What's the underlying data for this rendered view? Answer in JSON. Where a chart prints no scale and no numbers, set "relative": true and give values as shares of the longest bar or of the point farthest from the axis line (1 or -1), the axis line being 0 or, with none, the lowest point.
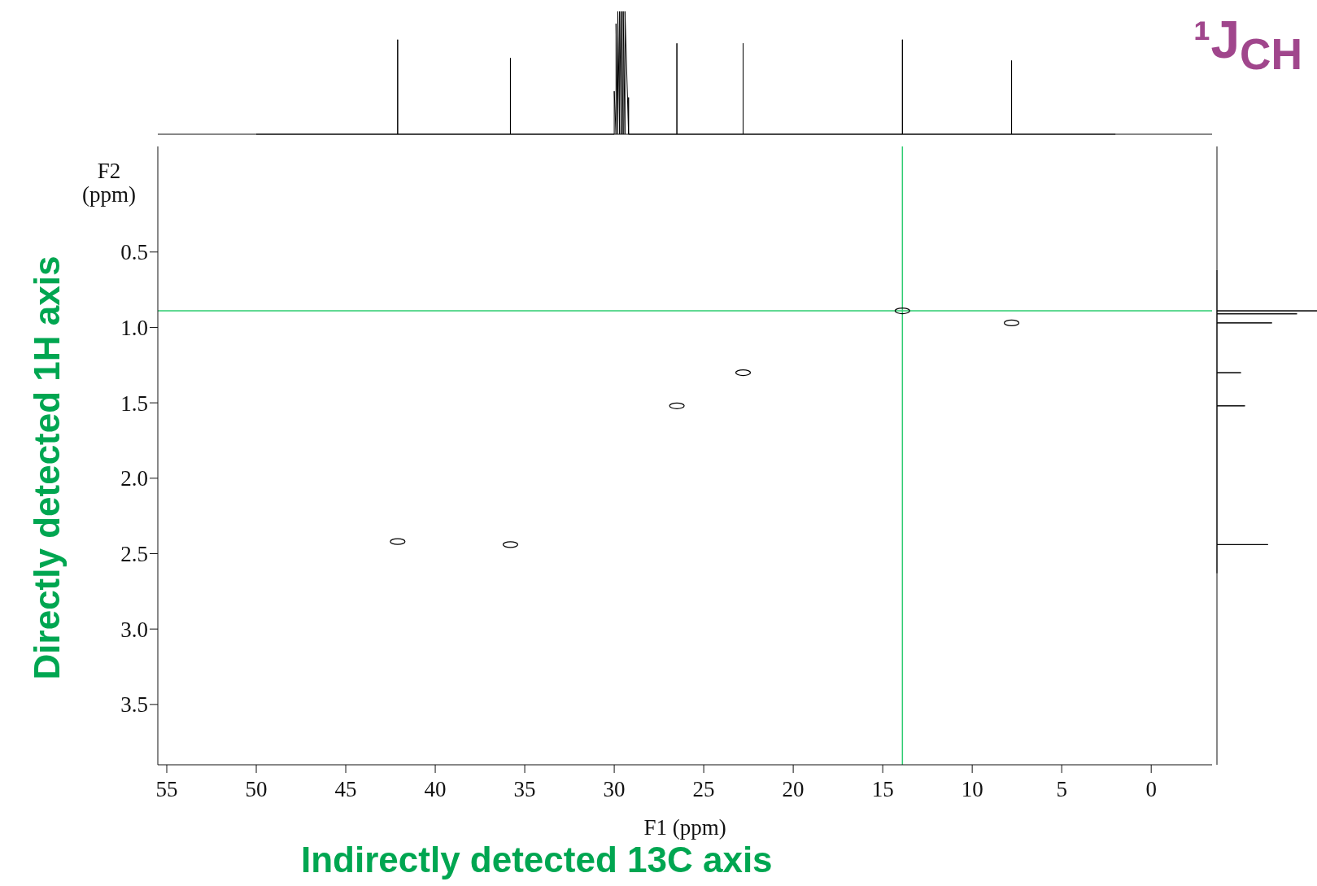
{
  "chart_data": [
    {
      "type": "scatter",
      "xlabel": "F1 (ppm)",
      "ylabel": "F2 (ppm)",
      "annotations": [
        "Directly detected 1H axis",
        "Indirectly detected 13C axis"
      ],
      "x": [
        13.9,
        7.8,
        22.8,
        26.5,
        42.1,
        35.8
      ],
      "values": [
        0.89,
        0.97,
        1.3,
        1.52,
        2.42,
        2.44
      ],
      "color": "#000000",
      "marker": "circle",
      "xlim": [
        55.5,
        -3.4
      ],
      "xticks": [
        55,
        50,
        45,
        40,
        35,
        30,
        25,
        20,
        15,
        10,
        5,
        0
      ],
      "ylim": [
        3.9,
        -0.2
      ],
      "yticks": [
        0.5,
        {
          "value": 1,
          "label": "1.0"
        },
        1.5,
        {
          "value": 2,
          "label": "2.0"
        },
        2.5,
        {
          "value": 3,
          "label": "3.0"
        },
        3.5
      ],
      "ref_lines": [
        {
          "axis": "x",
          "value": 13.9,
          "color": "#2ecc71"
        },
        {
          "axis": "y",
          "value": 0.89,
          "color": "#2ecc71"
        }
      ],
      "grid": false,
      "legend": false
    },
    {
      "type": "line",
      "title": "¹J$_{CH}$",
      "relative": true,
      "tick_labels": false,
      "color": "#000000",
      "xlim": [
        55.5,
        -3.4
      ],
      "x": [
        50,
        42.1,
        42.1,
        42.1,
        35.8,
        35.8,
        35.8,
        30.0,
        30.0,
        29.9,
        29.9,
        29.8,
        29.8,
        29.7,
        29.7,
        29.6,
        29.6,
        29.5,
        29.5,
        29.4,
        29.4,
        29.2,
        29.2,
        29.2,
        26.5,
        26.5,
        26.5,
        22.8,
        22.8,
        22.8,
        13.9,
        13.9,
        13.9,
        7.8,
        7.8,
        7.8,
        2
      ],
      "values": [
        0,
        0,
        0.77,
        0,
        0,
        0.62,
        0,
        0,
        0.35,
        0,
        0.9,
        0,
        1,
        0,
        1,
        0,
        1,
        0,
        1,
        0,
        1,
        0,
        0.3,
        0,
        0,
        0.74,
        0,
        0,
        0.74,
        0,
        0,
        0.77,
        0,
        0,
        0.6,
        0,
        0
      ]
    },
    {
      "type": "line",
      "relative": true,
      "orientation": "horizontal",
      "tick_labels": false,
      "color": "#000000",
      "ylim": [
        3.9,
        -0.2
      ],
      "x": [
        0.62,
        0.89,
        0.89,
        0.89,
        0.91,
        0.91,
        0.91,
        0.97,
        0.97,
        0.97,
        1.3,
        1.3,
        1.3,
        1.52,
        1.52,
        1.52,
        2.44,
        2.44,
        2.44,
        2.63
      ],
      "values": [
        0,
        0,
        1,
        0,
        0,
        0.8,
        0,
        0,
        0.55,
        0,
        0,
        0.24,
        0,
        0,
        0.28,
        0,
        0,
        0.51,
        0,
        0
      ]
    }
  ]
}
